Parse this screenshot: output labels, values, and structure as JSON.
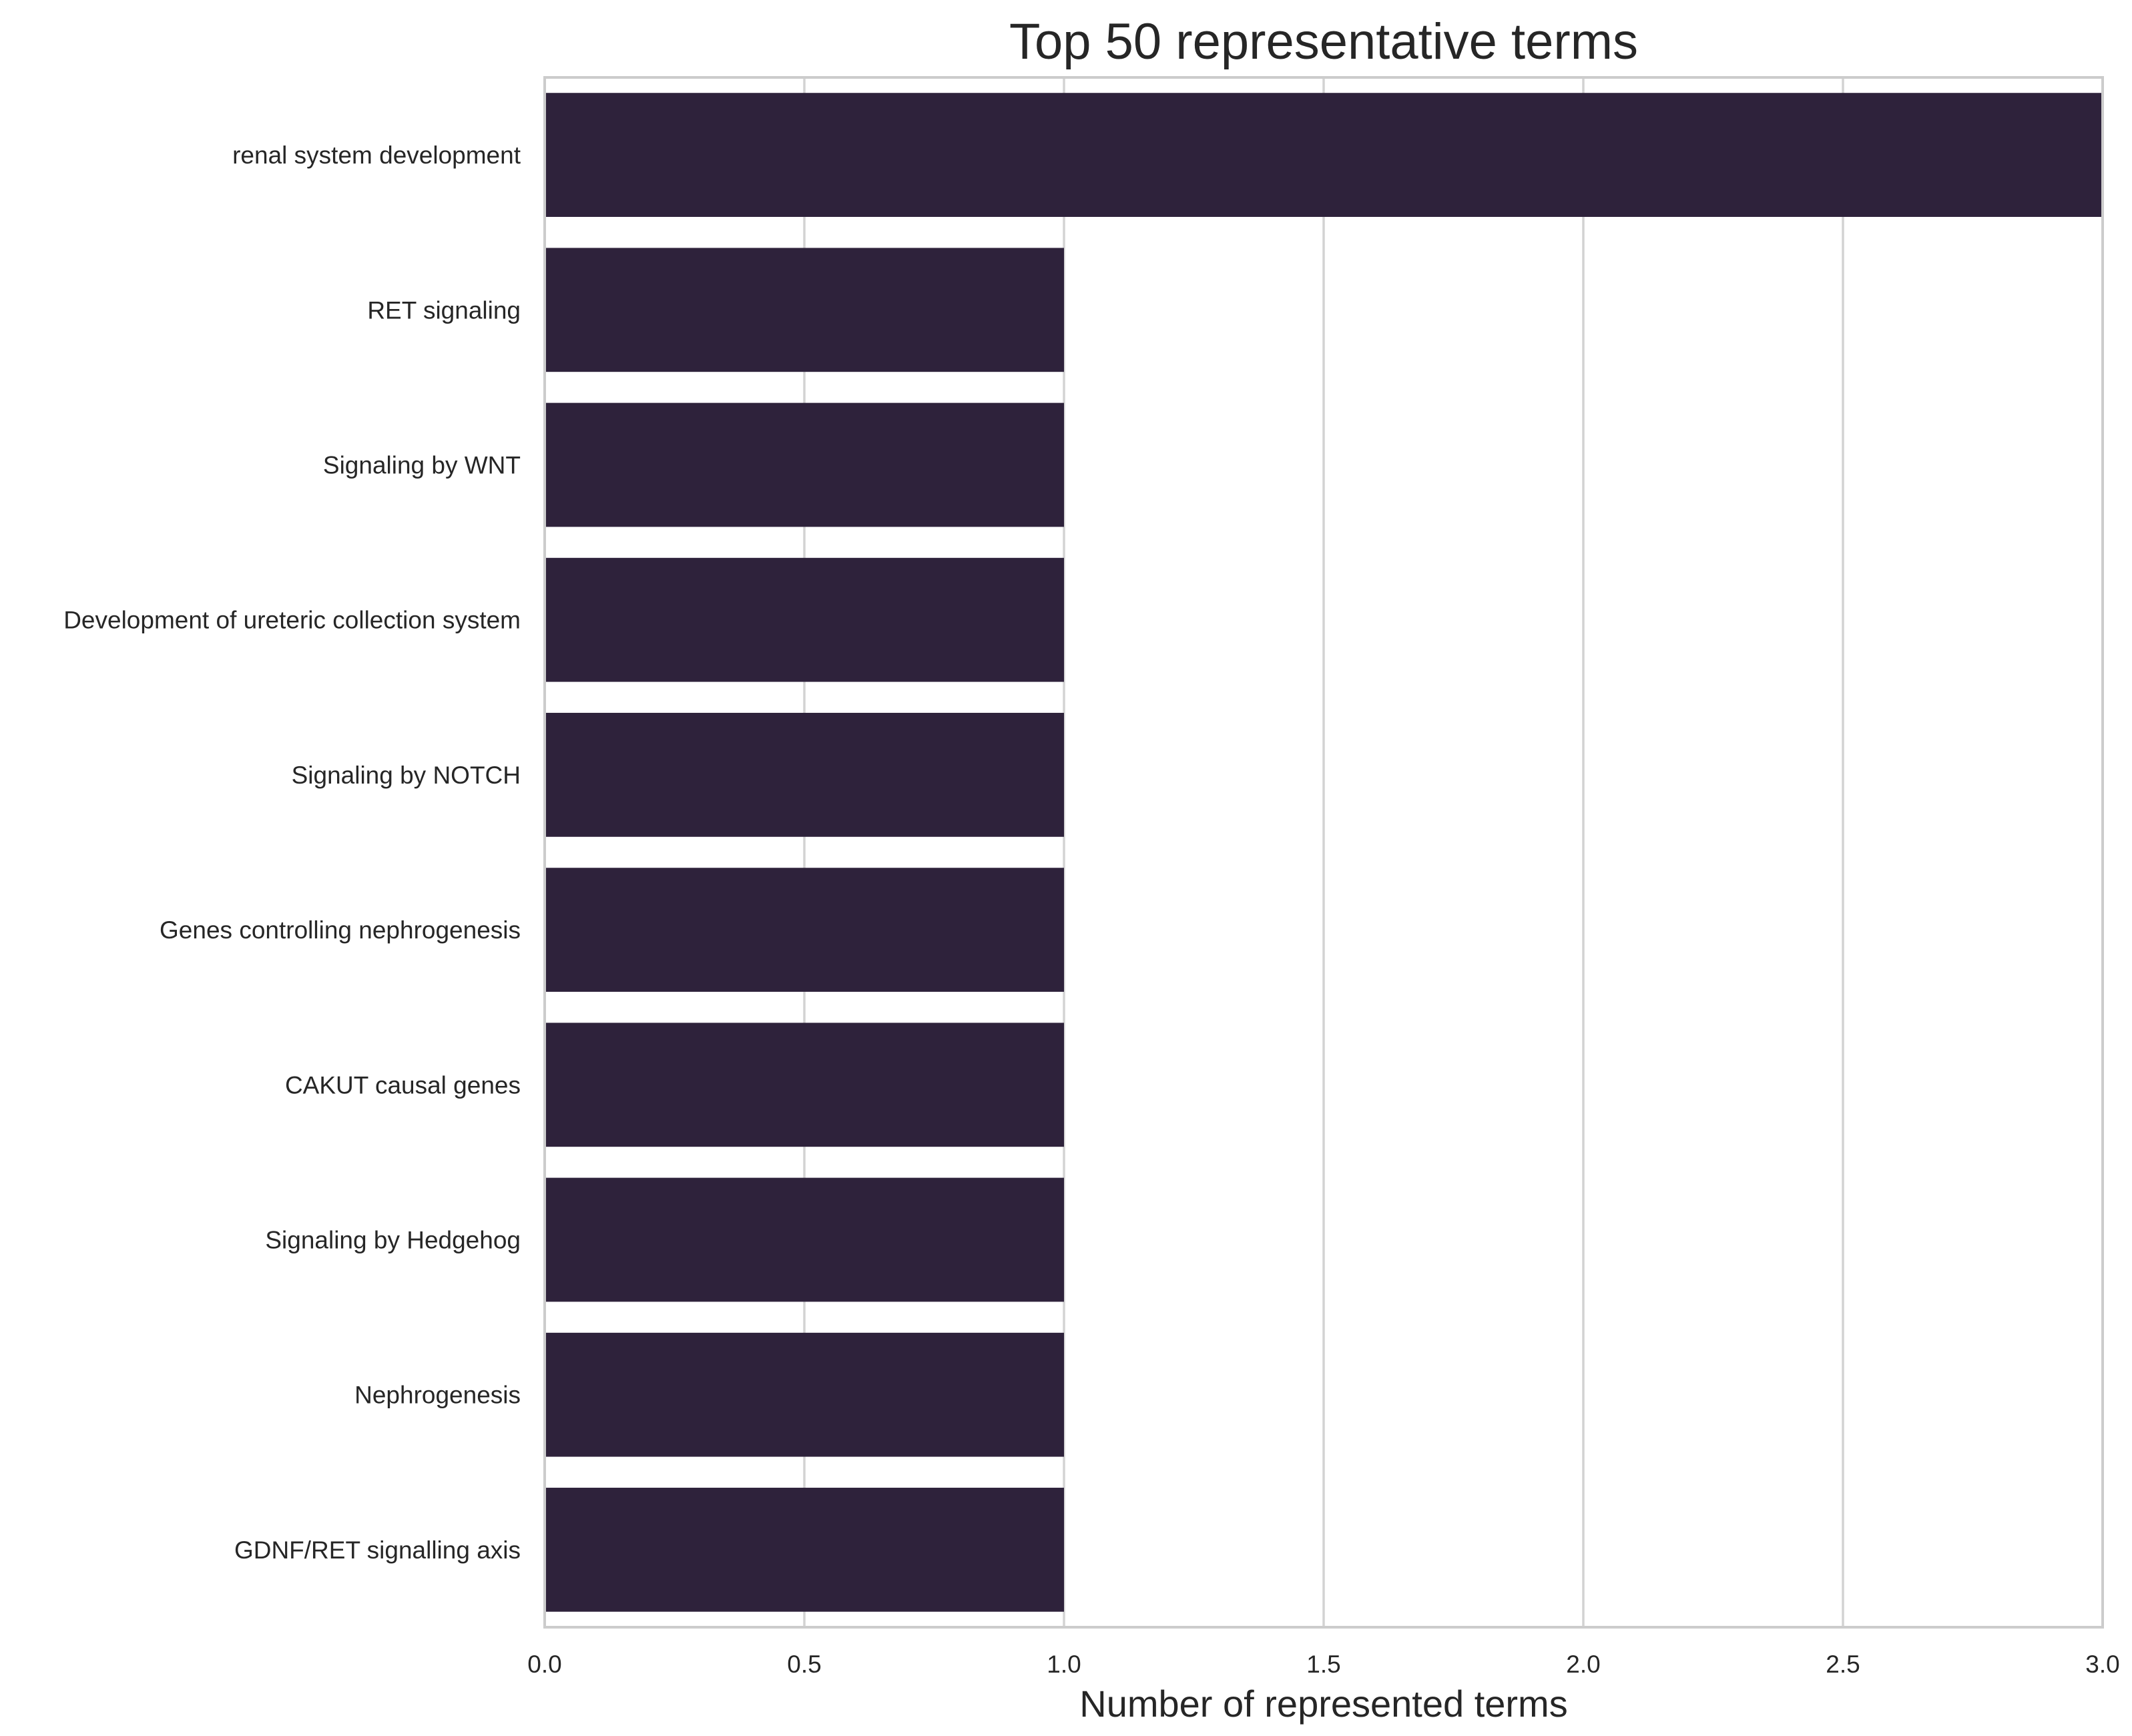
{
  "chart_data": {
    "type": "bar",
    "orientation": "horizontal",
    "title": "Top 50 representative terms",
    "xlabel": "Number of represented terms",
    "ylabel": "",
    "xlim": [
      0,
      3
    ],
    "xticks": [
      "0.0",
      "0.5",
      "1.0",
      "1.5",
      "2.0",
      "2.5",
      "3.0"
    ],
    "categories": [
      "renal system development",
      "RET signaling",
      "Signaling by WNT",
      "Development of ureteric collection system",
      "Signaling by NOTCH",
      "Genes controlling nephrogenesis",
      "CAKUT causal genes",
      "Signaling by Hedgehog",
      "Nephrogenesis",
      "GDNF/RET signalling axis"
    ],
    "values": [
      3,
      1,
      1,
      1,
      1,
      1,
      1,
      1,
      1,
      1
    ],
    "bar_color": "#2e223b",
    "grid": "vertical",
    "legend": "none"
  }
}
